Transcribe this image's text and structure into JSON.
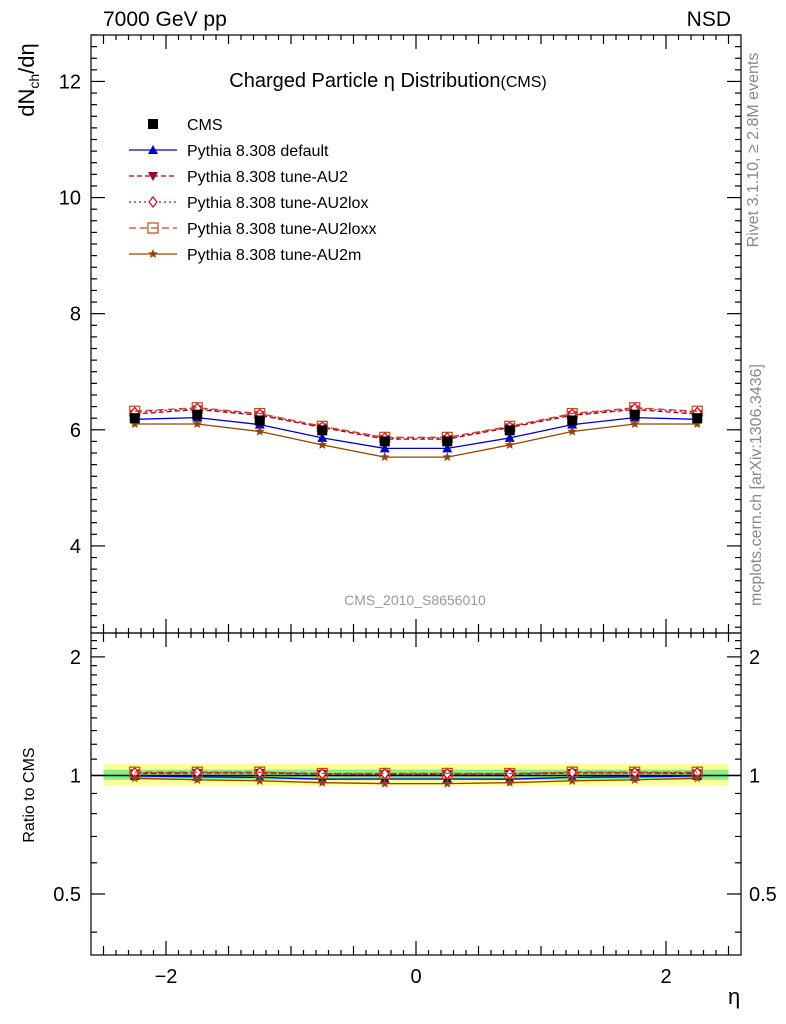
{
  "header": {
    "left": "7000 GeV pp",
    "right": "NSD"
  },
  "side": {
    "rivet": "Rivet 3.1.10, ≥ 2.8M events",
    "mcplots": "mcplots.cern.ch [arXiv:1306.3436]"
  },
  "watermark": "CMS_2010_S8656010",
  "chart_data": [
    {
      "type": "line",
      "title": "Charged Particle η Distribution",
      "title_suffix": "(CMS)",
      "xlabel": "η",
      "ylabel": "dN_ch/dη",
      "ylabel_display": "dNch/dη",
      "xlim": [
        -2.6,
        2.6
      ],
      "ylim": [
        2.5,
        12.8
      ],
      "yticks": [
        4,
        6,
        8,
        10,
        12
      ],
      "xticks": [
        -2,
        0,
        2
      ],
      "legend_position": "top-left",
      "x": [
        -2.25,
        -1.75,
        -1.25,
        -0.75,
        -0.25,
        0.25,
        0.75,
        1.25,
        1.75,
        2.25
      ],
      "series": [
        {
          "name": "CMS",
          "color": "#000000",
          "marker": "square",
          "values": [
            6.2,
            6.26,
            6.16,
            5.99,
            5.8,
            5.8,
            5.99,
            6.16,
            6.26,
            6.2
          ]
        },
        {
          "name": "Pythia 8.308 default",
          "color": "#0000cc",
          "marker": "triangle-up",
          "dash": "",
          "values": [
            6.18,
            6.21,
            6.09,
            5.86,
            5.68,
            5.68,
            5.86,
            6.09,
            6.21,
            6.18
          ]
        },
        {
          "name": "Pythia 8.308 tune-AU2",
          "color": "#990033",
          "marker": "triangle-down",
          "dash": "5,3",
          "values": [
            6.27,
            6.35,
            6.25,
            6.04,
            5.84,
            5.84,
            6.04,
            6.25,
            6.35,
            6.27
          ]
        },
        {
          "name": "Pythia 8.308 tune-AU2lox",
          "color": "#cc0033",
          "marker": "diamond",
          "dash": "2,3",
          "values": [
            6.3,
            6.37,
            6.27,
            6.05,
            5.86,
            5.86,
            6.05,
            6.27,
            6.37,
            6.3
          ]
        },
        {
          "name": "Pythia 8.308 tune-AU2loxx",
          "color": "#cc4411",
          "marker": "square-open",
          "dash": "7,4",
          "values": [
            6.32,
            6.38,
            6.28,
            6.06,
            5.87,
            5.87,
            6.06,
            6.28,
            6.38,
            6.32
          ]
        },
        {
          "name": "Pythia 8.308 tune-AU2m",
          "color": "#994400",
          "marker": "star",
          "dash": "",
          "values": [
            6.1,
            6.1,
            5.97,
            5.74,
            5.53,
            5.53,
            5.74,
            5.97,
            6.1,
            6.1
          ]
        }
      ]
    },
    {
      "type": "line",
      "ylabel": "Ratio to CMS",
      "xlabel": "η",
      "xlim": [
        -2.6,
        2.6
      ],
      "ylim": [
        0.35,
        2.3
      ],
      "yticks": [
        0.5,
        1,
        2
      ],
      "yticklabels": [
        "0.5",
        "1",
        "2"
      ],
      "xticks": [
        -2,
        0,
        2
      ],
      "log_scale_y": true,
      "bands": [
        {
          "name": "uncertainty-outer",
          "color": "#ffff99",
          "lo": 0.94,
          "hi": 1.07
        },
        {
          "name": "uncertainty-inner",
          "color": "#88ee88",
          "lo": 0.975,
          "hi": 1.035
        }
      ],
      "reference_line": 1
    }
  ]
}
